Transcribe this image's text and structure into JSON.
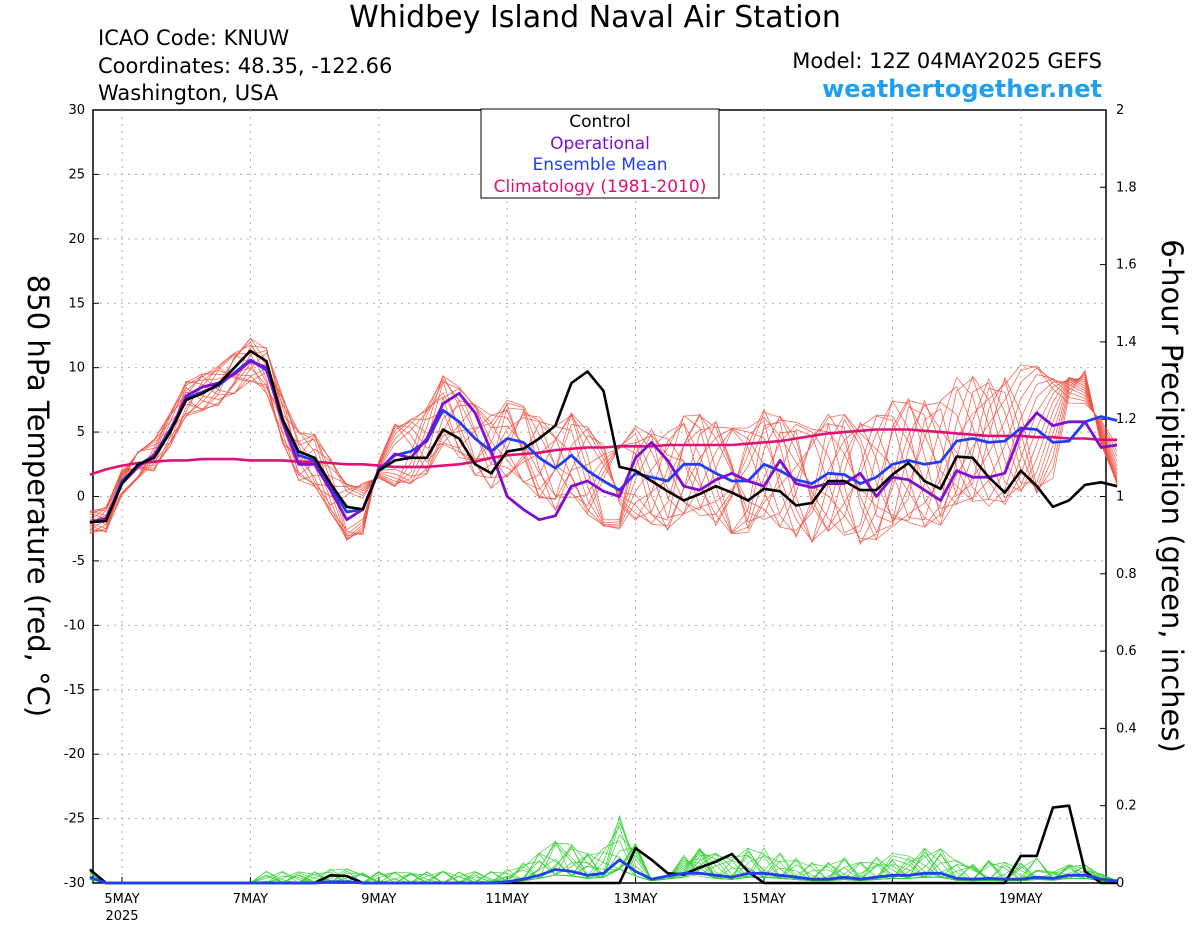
{
  "title": "Whidbey Island Naval Air Station",
  "icao": "ICAO Code: KNUW",
  "coordinates": "Coordinates: 48.35, -122.66",
  "location": "Washington, USA",
  "model": "Model: 12Z 04MAY2025 GEFS",
  "site": "weathertogether.net",
  "colors": {
    "control": "#000000",
    "operational": "#8010d0",
    "ensemble_mean": "#2040f0",
    "climatology": "#e0107a",
    "member_temp": "#f05040",
    "member_precip": "#30d030",
    "site": "#1e9ff0"
  },
  "chart_data": {
    "type": "line",
    "title": "Whidbey Island Naval Air Station",
    "ylabel": "850 hPa Temperature (red, °C)",
    "y2label": "6-hour Precipitation (green, inches)",
    "ylim": [
      -30,
      30
    ],
    "y2lim": [
      0,
      2
    ],
    "yticks": [
      -30,
      -25,
      -20,
      -15,
      -10,
      -5,
      0,
      5,
      10,
      15,
      20,
      25,
      30
    ],
    "y2ticks": [
      0,
      0.2,
      0.4,
      0.6,
      0.8,
      1,
      1.2,
      1.4,
      1.6,
      1.8,
      2
    ],
    "y2ticklabels": [
      "0",
      "0.2",
      "0.4",
      "0.6",
      "0.8",
      "1",
      "1.2",
      "1.4",
      "1.6",
      "1.8",
      "2"
    ],
    "xticks": [
      {
        "day": 5,
        "label": "5MAY",
        "sub": "2025"
      },
      {
        "day": 7,
        "label": "7MAY"
      },
      {
        "day": 9,
        "label": "9MAY"
      },
      {
        "day": 11,
        "label": "11MAY"
      },
      {
        "day": 13,
        "label": "13MAY"
      },
      {
        "day": 15,
        "label": "15MAY"
      },
      {
        "day": 17,
        "label": "17MAY"
      },
      {
        "day": 19,
        "label": "19MAY"
      }
    ],
    "x_start_day": 4.5,
    "x_step_days": 0.25,
    "legend": [
      "Control",
      "Operational",
      "Ensemble Mean",
      "Climatology (1981-2010)"
    ],
    "legend_position": "top-center",
    "grid": true,
    "series": [
      {
        "name": "Control",
        "kind": "temp",
        "values": [
          -2.0,
          -1.9,
          1.0,
          2.5,
          3.0,
          5.0,
          7.5,
          8.0,
          8.7,
          10.0,
          11.3,
          10.5,
          6.0,
          3.5,
          3.0,
          1.0,
          -0.8,
          -1.0,
          2.0,
          2.8,
          3.0,
          3.0,
          5.2,
          4.5,
          2.5,
          1.8,
          3.5,
          3.7,
          4.5,
          5.5,
          8.8,
          9.7,
          8.2,
          2.3,
          2.0,
          1.2,
          0.4,
          -0.3,
          0.2,
          0.8,
          0.3,
          -0.3,
          0.6,
          0.4,
          -0.7,
          -0.5,
          1.2,
          1.2,
          0.5,
          0.5,
          1.7,
          2.6,
          1.2,
          0.6,
          3.1,
          3.0,
          1.5,
          0.3,
          2.0,
          0.8,
          -0.8,
          -0.3,
          0.9,
          1.1,
          0.8
        ]
      },
      {
        "name": "Operational",
        "kind": "temp",
        "values": [
          -2.0,
          -1.7,
          1.0,
          2.3,
          3.2,
          5.0,
          7.8,
          8.5,
          8.8,
          9.5,
          10.5,
          10.0,
          5.8,
          2.5,
          2.5,
          0.5,
          -1.8,
          -1.0,
          2.0,
          3.3,
          3.0,
          4.5,
          7.2,
          8.0,
          6.5,
          3.5,
          0.0,
          -1.0,
          -1.8,
          -1.5,
          0.8,
          1.2,
          0.4,
          0.0,
          3.0,
          4.2,
          2.8,
          0.8,
          0.5,
          1.3,
          1.8,
          1.2,
          0.8,
          2.8,
          1.0,
          0.7,
          1.0,
          1.0,
          1.8,
          0.0,
          1.5,
          1.3,
          0.5,
          -0.3,
          2.0,
          1.5,
          1.5,
          1.8,
          5.0,
          6.5,
          5.5,
          5.8,
          5.8,
          3.8,
          4.0
        ]
      },
      {
        "name": "Ensemble Mean",
        "kind": "temp",
        "values": [
          -2.0,
          -1.8,
          1.2,
          2.4,
          3.2,
          5.2,
          7.6,
          8.1,
          8.6,
          9.6,
          10.6,
          9.8,
          6.0,
          3.2,
          2.8,
          0.8,
          -1.2,
          -1.0,
          2.1,
          3.2,
          3.5,
          4.3,
          6.7,
          5.8,
          4.5,
          3.5,
          4.5,
          4.2,
          3.0,
          2.2,
          3.2,
          2.0,
          1.2,
          0.5,
          1.8,
          1.5,
          1.2,
          2.5,
          2.5,
          1.8,
          1.2,
          1.2,
          2.5,
          2.0,
          1.3,
          1.0,
          1.8,
          1.7,
          1.0,
          1.5,
          2.5,
          2.8,
          2.5,
          2.7,
          4.3,
          4.5,
          4.2,
          4.3,
          5.3,
          5.2,
          4.2,
          4.3,
          5.8,
          6.2,
          5.9
        ]
      },
      {
        "name": "Climatology (1981-2010)",
        "kind": "temp",
        "values": [
          1.7,
          2.1,
          2.4,
          2.6,
          2.7,
          2.8,
          2.8,
          2.9,
          2.9,
          2.9,
          2.8,
          2.8,
          2.8,
          2.7,
          2.7,
          2.6,
          2.5,
          2.5,
          2.4,
          2.3,
          2.3,
          2.3,
          2.4,
          2.5,
          2.7,
          3.0,
          3.2,
          3.3,
          3.4,
          3.6,
          3.7,
          3.8,
          3.8,
          3.9,
          3.9,
          3.9,
          4.0,
          4.0,
          4.0,
          4.0,
          4.0,
          4.1,
          4.2,
          4.3,
          4.5,
          4.7,
          4.9,
          5.0,
          5.1,
          5.2,
          5.2,
          5.2,
          5.1,
          5.0,
          4.9,
          4.8,
          4.7,
          4.7,
          4.7,
          4.6,
          4.6,
          4.5,
          4.5,
          4.4,
          4.4
        ]
      },
      {
        "name": "Control",
        "kind": "precip",
        "values": [
          0.035,
          0.0,
          0.0,
          0.0,
          0.0,
          0.0,
          0.0,
          0.0,
          0.0,
          0.0,
          0.0,
          0.0,
          0.0,
          0.0,
          0.0,
          0.02,
          0.018,
          0.0,
          0.0,
          0.0,
          0.0,
          0.0,
          0.0,
          0.0,
          0.0,
          0.0,
          0.0,
          0.0,
          0.0,
          0.0,
          0.0,
          0.0,
          0.0,
          0.0,
          0.09,
          0.06,
          0.025,
          0.022,
          0.04,
          0.055,
          0.075,
          0.03,
          0.0,
          0.0,
          0.0,
          0.0,
          0.0,
          0.0,
          0.0,
          0.0,
          0.0,
          0.0,
          0.0,
          0.0,
          0.0,
          0.0,
          0.0,
          0.0,
          0.07,
          0.07,
          0.195,
          0.2,
          0.03,
          0.0,
          0.0
        ]
      },
      {
        "name": "Ensemble Mean",
        "kind": "precip",
        "values": [
          0.015,
          0.0,
          0.0,
          0.0,
          0.0,
          0.0,
          0.0,
          0.0,
          0.0,
          0.0,
          0.0,
          0.0,
          0.0,
          0.0,
          0.0,
          0.003,
          0.003,
          0.0,
          0.0,
          0.0,
          0.0,
          0.0,
          0.0,
          0.0,
          0.0,
          0.0,
          0.003,
          0.01,
          0.02,
          0.035,
          0.03,
          0.02,
          0.025,
          0.06,
          0.03,
          0.01,
          0.018,
          0.025,
          0.025,
          0.02,
          0.015,
          0.025,
          0.025,
          0.02,
          0.015,
          0.01,
          0.01,
          0.015,
          0.01,
          0.015,
          0.02,
          0.02,
          0.025,
          0.025,
          0.012,
          0.01,
          0.012,
          0.01,
          0.01,
          0.015,
          0.012,
          0.02,
          0.02,
          0.01,
          0.005
        ]
      }
    ]
  }
}
